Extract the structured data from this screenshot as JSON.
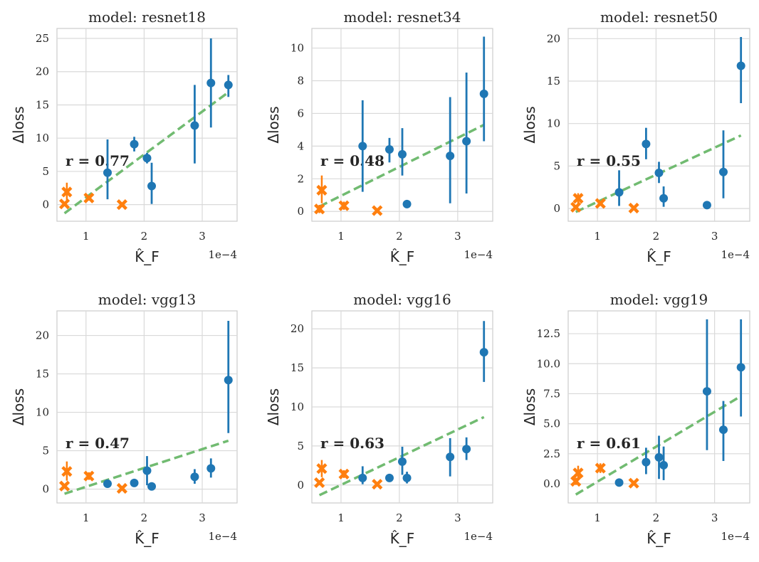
{
  "colors": {
    "blue": "#1f77b4",
    "orange": "#ff7f0e",
    "green": "#6ab86a"
  },
  "chart_data": [
    {
      "type": "scatter",
      "title": "model: resnet18",
      "xlabel": "K̂_F",
      "ylabel": "Δloss",
      "x_scale_label": "1e−4",
      "x_ticks": [
        1,
        2,
        3
      ],
      "x_tick_labels": [
        "1",
        "2",
        "3"
      ],
      "y_ticks": [
        0,
        5,
        10,
        15,
        20,
        25
      ],
      "y_tick_labels": [
        "0",
        "5",
        "10",
        "15",
        "20",
        "25"
      ],
      "xlim": [
        0.5,
        3.6
      ],
      "ylim": [
        -2.5,
        26.5
      ],
      "r_label": "r = 0.77",
      "blue": [
        {
          "x": 1.37,
          "y": 4.8,
          "lo": 0.8,
          "hi": 9.8
        },
        {
          "x": 1.83,
          "y": 9.1,
          "lo": 8.0,
          "hi": 10.2
        },
        {
          "x": 2.05,
          "y": 7.0,
          "lo": 6.2,
          "hi": 7.8
        },
        {
          "x": 2.13,
          "y": 2.8,
          "lo": 0.1,
          "hi": 6.3
        },
        {
          "x": 2.87,
          "y": 11.9,
          "lo": 6.2,
          "hi": 18.0
        },
        {
          "x": 3.15,
          "y": 18.3,
          "lo": 11.6,
          "hi": 25.0
        },
        {
          "x": 3.45,
          "y": 18.0,
          "lo": 16.2,
          "hi": 19.5
        }
      ],
      "orange": [
        {
          "x": 0.63,
          "y": 0.1,
          "lo": -0.2,
          "hi": 0.4
        },
        {
          "x": 0.67,
          "y": 1.9,
          "lo": 0.7,
          "hi": 3.3
        },
        {
          "x": 1.05,
          "y": 1.0,
          "lo": 0.6,
          "hi": 1.3
        },
        {
          "x": 1.62,
          "y": 0.0,
          "lo": -0.2,
          "hi": 0.2
        }
      ],
      "fit": {
        "x1": 0.63,
        "y1": -1.3,
        "x2": 3.45,
        "y2": 16.9
      }
    },
    {
      "type": "scatter",
      "title": "model: resnet34",
      "xlabel": "K̂_F",
      "ylabel": "Δloss",
      "x_scale_label": "1e−4",
      "x_ticks": [
        1,
        2,
        3
      ],
      "x_tick_labels": [
        "1",
        "2",
        "3"
      ],
      "y_ticks": [
        0,
        2,
        4,
        6,
        8,
        10
      ],
      "y_tick_labels": [
        "0",
        "2",
        "4",
        "6",
        "8",
        "10"
      ],
      "xlim": [
        0.5,
        3.6
      ],
      "ylim": [
        -0.6,
        11.2
      ],
      "r_label": "r = 0.48",
      "blue": [
        {
          "x": 1.37,
          "y": 4.0,
          "lo": 1.2,
          "hi": 6.8
        },
        {
          "x": 1.83,
          "y": 3.8,
          "lo": 3.0,
          "hi": 4.5
        },
        {
          "x": 2.05,
          "y": 3.5,
          "lo": 2.2,
          "hi": 5.1
        },
        {
          "x": 2.13,
          "y": 0.45,
          "lo": 0.2,
          "hi": 0.7
        },
        {
          "x": 2.87,
          "y": 3.4,
          "lo": 0.5,
          "hi": 7.0
        },
        {
          "x": 3.15,
          "y": 4.3,
          "lo": 1.1,
          "hi": 8.5
        },
        {
          "x": 3.45,
          "y": 7.2,
          "lo": 4.3,
          "hi": 10.7
        }
      ],
      "orange": [
        {
          "x": 0.63,
          "y": 0.15,
          "lo": -0.1,
          "hi": 0.4
        },
        {
          "x": 0.67,
          "y": 1.3,
          "lo": 0.5,
          "hi": 2.2
        },
        {
          "x": 1.05,
          "y": 0.35,
          "lo": 0.1,
          "hi": 0.6
        },
        {
          "x": 1.62,
          "y": 0.05,
          "lo": -0.1,
          "hi": 0.2
        }
      ],
      "fit": {
        "x1": 0.63,
        "y1": 0.3,
        "x2": 3.45,
        "y2": 5.3
      }
    },
    {
      "type": "scatter",
      "title": "model: resnet50",
      "xlabel": "K̂_F",
      "ylabel": "Δloss",
      "x_scale_label": "1e−4",
      "x_ticks": [
        1,
        2,
        3
      ],
      "x_tick_labels": [
        "1",
        "2",
        "3"
      ],
      "y_ticks": [
        0,
        5,
        10,
        15,
        20
      ],
      "y_tick_labels": [
        "0",
        "5",
        "10",
        "15",
        "20"
      ],
      "xlim": [
        0.5,
        3.6
      ],
      "ylim": [
        -1.5,
        21.2
      ],
      "r_label": "r = 0.55",
      "blue": [
        {
          "x": 1.37,
          "y": 1.9,
          "lo": 0.3,
          "hi": 4.5
        },
        {
          "x": 1.83,
          "y": 7.6,
          "lo": 5.8,
          "hi": 9.5
        },
        {
          "x": 2.05,
          "y": 4.2,
          "lo": 3.0,
          "hi": 5.5
        },
        {
          "x": 2.13,
          "y": 1.2,
          "lo": 0.2,
          "hi": 2.6
        },
        {
          "x": 2.87,
          "y": 0.4,
          "lo": 0.2,
          "hi": 0.6
        },
        {
          "x": 3.15,
          "y": 4.3,
          "lo": 1.2,
          "hi": 9.2
        },
        {
          "x": 3.45,
          "y": 16.8,
          "lo": 12.4,
          "hi": 20.2
        }
      ],
      "orange": [
        {
          "x": 0.63,
          "y": 0.15,
          "lo": -0.1,
          "hi": 0.4
        },
        {
          "x": 0.67,
          "y": 1.2,
          "lo": 0.6,
          "hi": 1.8
        },
        {
          "x": 1.05,
          "y": 0.6,
          "lo": 0.3,
          "hi": 0.9
        },
        {
          "x": 1.62,
          "y": 0.05,
          "lo": -0.1,
          "hi": 0.2
        }
      ],
      "fit": {
        "x1": 0.63,
        "y1": -0.4,
        "x2": 3.45,
        "y2": 8.6
      }
    },
    {
      "type": "scatter",
      "title": "model: vgg13",
      "xlabel": "K̂_F",
      "ylabel": "Δloss",
      "x_scale_label": "1e−4",
      "x_ticks": [
        1,
        2,
        3
      ],
      "x_tick_labels": [
        "1",
        "2",
        "3"
      ],
      "y_ticks": [
        0,
        5,
        10,
        15,
        20
      ],
      "y_tick_labels": [
        "0",
        "5",
        "10",
        "15",
        "20"
      ],
      "xlim": [
        0.5,
        3.6
      ],
      "ylim": [
        -1.8,
        23.2
      ],
      "r_label": "r = 0.47",
      "blue": [
        {
          "x": 1.37,
          "y": 0.7,
          "lo": 0.3,
          "hi": 1.1
        },
        {
          "x": 1.83,
          "y": 0.8,
          "lo": 0.5,
          "hi": 1.1
        },
        {
          "x": 2.05,
          "y": 2.4,
          "lo": 0.5,
          "hi": 4.3
        },
        {
          "x": 2.13,
          "y": 0.35,
          "lo": 0.1,
          "hi": 0.6
        },
        {
          "x": 2.87,
          "y": 1.6,
          "lo": 0.7,
          "hi": 2.6
        },
        {
          "x": 3.15,
          "y": 2.7,
          "lo": 1.5,
          "hi": 4.0
        },
        {
          "x": 3.45,
          "y": 14.2,
          "lo": 7.3,
          "hi": 21.9
        }
      ],
      "orange": [
        {
          "x": 0.63,
          "y": 0.4,
          "lo": 0.1,
          "hi": 0.7
        },
        {
          "x": 0.67,
          "y": 2.3,
          "lo": 1.1,
          "hi": 3.6
        },
        {
          "x": 1.05,
          "y": 1.7,
          "lo": 1.2,
          "hi": 2.2
        },
        {
          "x": 1.62,
          "y": 0.1,
          "lo": -0.1,
          "hi": 0.3
        }
      ],
      "fit": {
        "x1": 0.63,
        "y1": -0.6,
        "x2": 3.45,
        "y2": 6.3
      }
    },
    {
      "type": "scatter",
      "title": "model: vgg16",
      "xlabel": "K̂_F",
      "ylabel": "Δloss",
      "x_scale_label": "1e−4",
      "x_ticks": [
        1,
        2,
        3
      ],
      "x_tick_labels": [
        "1",
        "2",
        "3"
      ],
      "y_ticks": [
        0,
        5,
        10,
        15,
        20
      ],
      "y_tick_labels": [
        "0",
        "5",
        "10",
        "15",
        "20"
      ],
      "xlim": [
        0.5,
        3.6
      ],
      "ylim": [
        -2.3,
        22.3
      ],
      "r_label": "r = 0.63",
      "blue": [
        {
          "x": 1.37,
          "y": 0.9,
          "lo": 0.1,
          "hi": 2.4
        },
        {
          "x": 1.83,
          "y": 0.9,
          "lo": 0.6,
          "hi": 1.2
        },
        {
          "x": 2.05,
          "y": 3.0,
          "lo": 1.3,
          "hi": 4.9
        },
        {
          "x": 2.13,
          "y": 0.9,
          "lo": 0.2,
          "hi": 1.7
        },
        {
          "x": 2.87,
          "y": 3.6,
          "lo": 1.1,
          "hi": 6.0
        },
        {
          "x": 3.15,
          "y": 4.6,
          "lo": 3.2,
          "hi": 6.1
        },
        {
          "x": 3.45,
          "y": 17.0,
          "lo": 13.2,
          "hi": 21.0
        }
      ],
      "orange": [
        {
          "x": 0.63,
          "y": 0.3,
          "lo": 0.0,
          "hi": 0.6
        },
        {
          "x": 0.67,
          "y": 2.1,
          "lo": 1.0,
          "hi": 3.2
        },
        {
          "x": 1.05,
          "y": 1.4,
          "lo": 0.9,
          "hi": 1.9
        },
        {
          "x": 1.62,
          "y": 0.1,
          "lo": -0.1,
          "hi": 0.3
        }
      ],
      "fit": {
        "x1": 0.63,
        "y1": -1.3,
        "x2": 3.45,
        "y2": 8.7
      }
    },
    {
      "type": "scatter",
      "title": "model: vgg19",
      "xlabel": "K̂_F",
      "ylabel": "Δloss",
      "x_scale_label": "1e−4",
      "x_ticks": [
        1,
        2,
        3
      ],
      "x_tick_labels": [
        "1",
        "2",
        "3"
      ],
      "y_ticks": [
        0,
        2.5,
        5,
        7.5,
        10,
        12.5
      ],
      "y_tick_labels": [
        "0.0",
        "2.5",
        "5.0",
        "7.5",
        "10.0",
        "12.5"
      ],
      "xlim": [
        0.5,
        3.6
      ],
      "ylim": [
        -1.6,
        14.4
      ],
      "r_label": "r = 0.61",
      "blue": [
        {
          "x": 1.37,
          "y": 0.1,
          "lo": -0.1,
          "hi": 0.3
        },
        {
          "x": 1.83,
          "y": 1.8,
          "lo": 0.8,
          "hi": 3.0
        },
        {
          "x": 2.05,
          "y": 2.2,
          "lo": 0.4,
          "hi": 4.0
        },
        {
          "x": 2.13,
          "y": 1.55,
          "lo": 0.3,
          "hi": 3.1
        },
        {
          "x": 2.87,
          "y": 7.7,
          "lo": 2.8,
          "hi": 13.7
        },
        {
          "x": 3.15,
          "y": 4.5,
          "lo": 1.9,
          "hi": 6.9
        },
        {
          "x": 3.45,
          "y": 9.7,
          "lo": 5.6,
          "hi": 13.7
        }
      ],
      "orange": [
        {
          "x": 0.63,
          "y": 0.2,
          "lo": -0.1,
          "hi": 0.5
        },
        {
          "x": 0.67,
          "y": 0.9,
          "lo": 0.3,
          "hi": 1.5
        },
        {
          "x": 1.05,
          "y": 1.3,
          "lo": 0.9,
          "hi": 1.7
        },
        {
          "x": 1.62,
          "y": 0.05,
          "lo": -0.1,
          "hi": 0.2
        }
      ],
      "fit": {
        "x1": 0.63,
        "y1": -0.9,
        "x2": 3.45,
        "y2": 7.3
      }
    }
  ]
}
